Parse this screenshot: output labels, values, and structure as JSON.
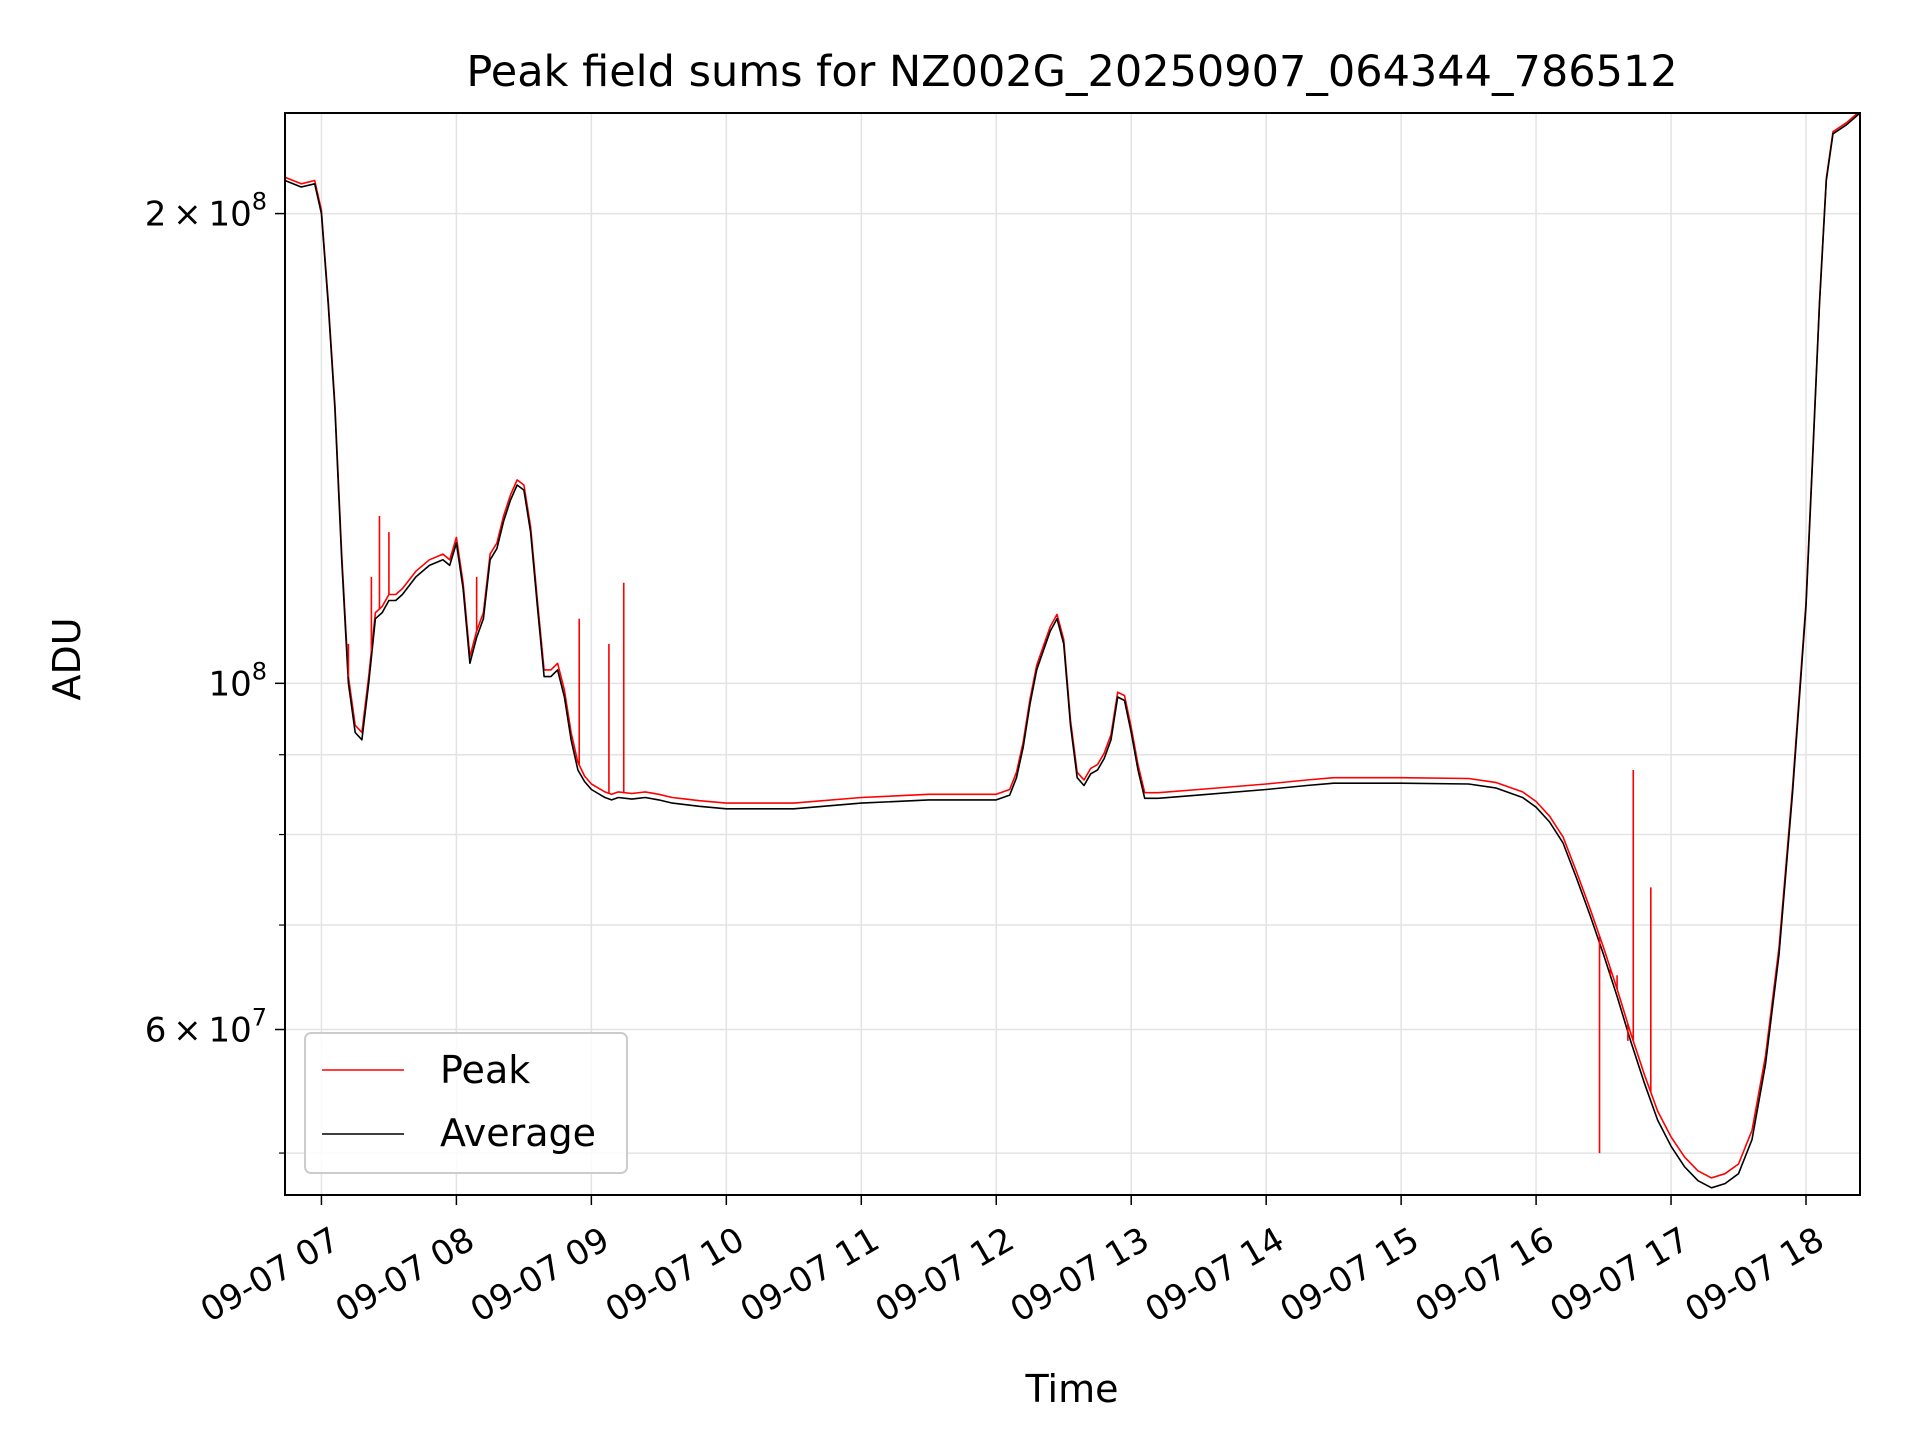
{
  "chart_data": {
    "type": "line",
    "title": "Peak field sums for NZ002G_20250907_064344_786512",
    "xlabel": "Time",
    "ylabel": "ADU",
    "x_unit": "hours on 09-07",
    "xlim": [
      6.73,
      18.4
    ],
    "ylim": [
      47000000,
      232000000
    ],
    "yscale": "log",
    "grid": true,
    "legend": "lower-left",
    "x_ticks": [
      "09-07 07",
      "09-07 08",
      "09-07 09",
      "09-07 10",
      "09-07 11",
      "09-07 12",
      "09-07 13",
      "09-07 14",
      "09-07 15",
      "09-07 16",
      "09-07 17",
      "09-07 18"
    ],
    "x_tick_values": [
      7,
      8,
      9,
      10,
      11,
      12,
      13,
      14,
      15,
      16,
      17,
      18
    ],
    "y_ticks": [
      {
        "value": 60000000,
        "mantissa": "6",
        "exponent": "7"
      },
      {
        "value": 100000000,
        "mantissa": "",
        "exponent": "8"
      },
      {
        "value": 200000000,
        "mantissa": "2",
        "exponent": "8"
      }
    ],
    "y_minor_ticks": [
      50000000,
      70000000,
      80000000,
      90000000
    ],
    "series": [
      {
        "name": "Average",
        "color": "#000000",
        "x": [
          6.73,
          6.85,
          6.95,
          7.0,
          7.05,
          7.1,
          7.15,
          7.2,
          7.25,
          7.3,
          7.35,
          7.4,
          7.45,
          7.5,
          7.55,
          7.6,
          7.7,
          7.8,
          7.9,
          7.95,
          8.0,
          8.05,
          8.1,
          8.15,
          8.2,
          8.25,
          8.3,
          8.35,
          8.4,
          8.45,
          8.5,
          8.55,
          8.6,
          8.65,
          8.7,
          8.75,
          8.8,
          8.85,
          8.9,
          8.95,
          9.0,
          9.05,
          9.1,
          9.15,
          9.2,
          9.3,
          9.4,
          9.5,
          9.6,
          9.7,
          9.8,
          10.0,
          10.5,
          11.0,
          11.5,
          11.75,
          12.0,
          12.1,
          12.15,
          12.2,
          12.25,
          12.3,
          12.35,
          12.4,
          12.45,
          12.5,
          12.55,
          12.6,
          12.65,
          12.7,
          12.75,
          12.8,
          12.85,
          12.9,
          12.95,
          13.0,
          13.05,
          13.1,
          13.2,
          13.5,
          14.0,
          14.3,
          14.5,
          15.0,
          15.5,
          15.7,
          15.9,
          16.0,
          16.1,
          16.2,
          16.3,
          16.4,
          16.5,
          16.6,
          16.7,
          16.8,
          16.9,
          17.0,
          17.1,
          17.2,
          17.3,
          17.4,
          17.5,
          17.6,
          17.7,
          17.8,
          17.9,
          18.0,
          18.05,
          18.1,
          18.15,
          18.2,
          18.3,
          18.4
        ],
        "y": [
          210000000,
          208000000,
          209000000,
          200000000,
          175000000,
          150000000,
          120000000,
          100000000,
          93000000,
          92000000,
          100000000,
          110000000,
          111000000,
          113000000,
          113000000,
          114000000,
          117000000,
          119000000,
          120000000,
          119000000,
          123000000,
          115000000,
          103000000,
          107000000,
          110000000,
          120000000,
          122000000,
          127000000,
          131000000,
          134000000,
          133000000,
          125000000,
          112000000,
          101000000,
          101000000,
          102000000,
          98000000,
          92000000,
          88000000,
          86500000,
          85500000,
          85000000,
          84500000,
          84200000,
          84500000,
          84300000,
          84500000,
          84200000,
          83800000,
          83600000,
          83400000,
          83100000,
          83100000,
          83800000,
          84200000,
          84200000,
          84200000,
          84800000,
          87000000,
          91000000,
          97000000,
          102000000,
          105000000,
          108000000,
          110000000,
          106000000,
          94000000,
          87000000,
          86000000,
          87500000,
          88000000,
          89500000,
          92000000,
          98000000,
          97500000,
          93000000,
          88000000,
          84400000,
          84400000,
          84800000,
          85500000,
          86000000,
          86300000,
          86300000,
          86200000,
          85700000,
          84500000,
          83300000,
          81500000,
          79000000,
          75000000,
          71000000,
          67000000,
          63000000,
          59000000,
          55500000,
          52500000,
          50500000,
          49000000,
          48000000,
          47500000,
          47800000,
          48500000,
          51000000,
          57000000,
          67000000,
          85000000,
          112000000,
          140000000,
          175000000,
          210000000,
          225000000,
          228000000,
          232000000
        ]
      },
      {
        "name": "Peak",
        "color": "#ff0000",
        "x": [
          6.73,
          6.85,
          6.95,
          7.0,
          7.05,
          7.1,
          7.15,
          7.2,
          7.25,
          7.3,
          7.35,
          7.4,
          7.45,
          7.5,
          7.55,
          7.6,
          7.7,
          7.8,
          7.9,
          7.95,
          8.0,
          8.05,
          8.1,
          8.15,
          8.2,
          8.25,
          8.3,
          8.35,
          8.4,
          8.45,
          8.5,
          8.55,
          8.6,
          8.65,
          8.7,
          8.75,
          8.8,
          8.85,
          8.9,
          8.95,
          9.0,
          9.05,
          9.1,
          9.15,
          9.2,
          9.3,
          9.4,
          9.5,
          9.6,
          9.7,
          9.8,
          10.0,
          10.5,
          11.0,
          11.5,
          11.75,
          12.0,
          12.1,
          12.15,
          12.2,
          12.25,
          12.3,
          12.35,
          12.4,
          12.45,
          12.5,
          12.55,
          12.6,
          12.65,
          12.7,
          12.75,
          12.8,
          12.85,
          12.9,
          12.95,
          13.0,
          13.05,
          13.1,
          13.2,
          13.5,
          14.0,
          14.3,
          14.5,
          15.0,
          15.5,
          15.7,
          15.9,
          16.0,
          16.1,
          16.2,
          16.3,
          16.4,
          16.5,
          16.6,
          16.7,
          16.8,
          16.9,
          17.0,
          17.1,
          17.2,
          17.3,
          17.4,
          17.5,
          17.6,
          17.7,
          17.8,
          17.9,
          18.0,
          18.05,
          18.1,
          18.15,
          18.2,
          18.3,
          18.4
        ],
        "y": [
          211000000,
          209000000,
          210000000,
          201000000,
          176000000,
          151000000,
          121000000,
          101000000,
          94000000,
          93000000,
          101000000,
          111000000,
          112000000,
          114000000,
          114000000,
          115000000,
          118000000,
          120000000,
          121000000,
          120000000,
          124000000,
          116000000,
          104000000,
          108000000,
          111000000,
          121000000,
          123000000,
          128000000,
          132000000,
          135000000,
          134000000,
          126000000,
          113000000,
          102000000,
          102000000,
          103000000,
          99000000,
          93000000,
          89000000,
          87200000,
          86200000,
          85700000,
          85200000,
          84900000,
          85200000,
          85000000,
          85200000,
          84900000,
          84500000,
          84300000,
          84100000,
          83800000,
          83800000,
          84500000,
          84900000,
          84900000,
          84900000,
          85500000,
          87700000,
          91700000,
          97700000,
          102700000,
          105700000,
          108700000,
          110700000,
          106700000,
          94700000,
          87700000,
          86700000,
          88200000,
          88700000,
          90200000,
          92700000,
          98700000,
          98200000,
          93700000,
          88700000,
          85100000,
          85100000,
          85500000,
          86200000,
          86700000,
          87000000,
          87000000,
          86900000,
          86400000,
          85200000,
          84000000,
          82200000,
          79700000,
          75700000,
          71700000,
          67700000,
          63700000,
          59700000,
          56200000,
          53200000,
          51200000,
          49700000,
          48700000,
          48200000,
          48500000,
          49200000,
          51700000,
          57700000,
          67700000,
          85700000,
          112700000,
          140700000,
          175700000,
          210700000,
          225700000,
          228700000,
          232700000
        ]
      }
    ],
    "peak_spikes": [
      {
        "x": 7.2,
        "y": 106000000
      },
      {
        "x": 7.37,
        "y": 117000000
      },
      {
        "x": 7.43,
        "y": 128000000
      },
      {
        "x": 7.5,
        "y": 125000000
      },
      {
        "x": 8.15,
        "y": 117000000
      },
      {
        "x": 8.91,
        "y": 110000000
      },
      {
        "x": 9.13,
        "y": 106000000
      },
      {
        "x": 9.24,
        "y": 116000000
      },
      {
        "x": 16.47,
        "y": 50000000
      },
      {
        "x": 16.55,
        "y": 65000000
      },
      {
        "x": 16.6,
        "y": 65000000
      },
      {
        "x": 16.68,
        "y": 59000000
      },
      {
        "x": 16.72,
        "y": 88000000
      },
      {
        "x": 16.85,
        "y": 74000000
      }
    ]
  }
}
